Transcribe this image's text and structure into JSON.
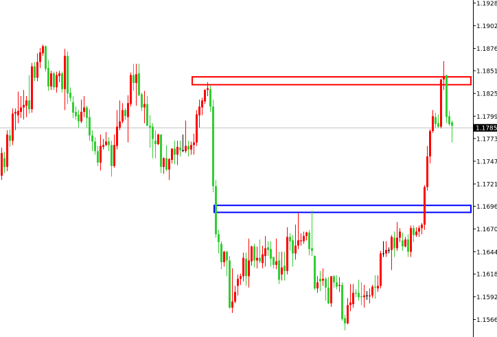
{
  "chart_data": {
    "type": "candlestick",
    "y_axis": {
      "position": "right",
      "ylim": [
        1.1552,
        1.1932
      ],
      "tick_labels": [
        "1.19285",
        "1.19025",
        "1.18765",
        "1.18510",
        "1.18250",
        "1.17990",
        "1.17735",
        "1.17475",
        "1.17215",
        "1.16960",
        "1.16700",
        "1.16440",
        "1.16185",
        "1.15925",
        "1.15665"
      ]
    },
    "grid": false,
    "current_price": {
      "value": 1.17857,
      "label": "1.17857",
      "line_color": "#c0c0c0",
      "label_bg": "#000000"
    },
    "colors": {
      "up": "#ff0000",
      "down": "#32cd32",
      "doji": "#000000",
      "axis": "#000000"
    },
    "zones": [
      {
        "name": "resistance",
        "color": "#ff0000",
        "top": 1.1844,
        "bottom": 1.1835,
        "start_index": 70
      },
      {
        "name": "support",
        "color": "#0000ff",
        "top": 1.1697,
        "bottom": 1.1689,
        "start_index": 78
      }
    ],
    "candles_format": [
      "open",
      "high",
      "low",
      "close"
    ],
    "candles": [
      [
        1.1731,
        1.1763,
        1.1726,
        1.1757
      ],
      [
        1.1751,
        1.1758,
        1.1734,
        1.1741
      ],
      [
        1.1741,
        1.1783,
        1.1736,
        1.1778
      ],
      [
        1.1777,
        1.1784,
        1.1764,
        1.1771
      ],
      [
        1.1771,
        1.1808,
        1.1766,
        1.1802
      ],
      [
        1.1802,
        1.1808,
        1.1783,
        1.1804
      ],
      [
        1.18,
        1.1827,
        1.1791,
        1.1805
      ],
      [
        1.1804,
        1.1822,
        1.1797,
        1.1809
      ],
      [
        1.1809,
        1.1829,
        1.1795,
        1.1812
      ],
      [
        1.1811,
        1.1822,
        1.1798,
        1.1817
      ],
      [
        1.1817,
        1.1846,
        1.1802,
        1.1807
      ],
      [
        1.1807,
        1.186,
        1.1803,
        1.1856
      ],
      [
        1.1856,
        1.1861,
        1.1839,
        1.1843
      ],
      [
        1.1843,
        1.1871,
        1.1839,
        1.1861
      ],
      [
        1.1861,
        1.1877,
        1.1854,
        1.1872
      ],
      [
        1.1871,
        1.1881,
        1.1868,
        1.1879
      ],
      [
        1.1879,
        1.188,
        1.185,
        1.1853
      ],
      [
        1.1854,
        1.1863,
        1.1828,
        1.1833
      ],
      [
        1.1833,
        1.1851,
        1.1829,
        1.1848
      ],
      [
        1.1848,
        1.185,
        1.1829,
        1.1832
      ],
      [
        1.1832,
        1.185,
        1.1826,
        1.1846
      ],
      [
        1.1845,
        1.1851,
        1.1838,
        1.1848
      ],
      [
        1.1848,
        1.185,
        1.1826,
        1.183
      ],
      [
        1.183,
        1.1876,
        1.1806,
        1.1868
      ],
      [
        1.1868,
        1.1873,
        1.1813,
        1.1825
      ],
      [
        1.1826,
        1.1832,
        1.1816,
        1.182
      ],
      [
        1.1815,
        1.1822,
        1.1797,
        1.1803
      ],
      [
        1.1804,
        1.181,
        1.1795,
        1.1799
      ],
      [
        1.1801,
        1.1806,
        1.1786,
        1.1793
      ],
      [
        1.1793,
        1.1818,
        1.1791,
        1.1804
      ],
      [
        1.1804,
        1.1822,
        1.1798,
        1.1809
      ],
      [
        1.1809,
        1.1811,
        1.1786,
        1.1797
      ],
      [
        1.1798,
        1.1807,
        1.1771,
        1.1777
      ],
      [
        1.1777,
        1.1783,
        1.1759,
        1.177
      ],
      [
        1.177,
        1.1775,
        1.1755,
        1.1759
      ],
      [
        1.1759,
        1.1765,
        1.1742,
        1.1746
      ],
      [
        1.1746,
        1.1778,
        1.1737,
        1.1765
      ],
      [
        1.1764,
        1.1773,
        1.1761,
        1.1766
      ],
      [
        1.1766,
        1.1781,
        1.1765,
        1.177
      ],
      [
        1.177,
        1.1775,
        1.1759,
        1.1766
      ],
      [
        1.1766,
        1.1771,
        1.173,
        1.1742
      ],
      [
        1.1742,
        1.1778,
        1.174,
        1.1766
      ],
      [
        1.1765,
        1.1806,
        1.1761,
        1.1787
      ],
      [
        1.1786,
        1.1817,
        1.1783,
        1.1793
      ],
      [
        1.1793,
        1.1814,
        1.1791,
        1.1806
      ],
      [
        1.1806,
        1.1808,
        1.1795,
        1.1799
      ],
      [
        1.1798,
        1.1823,
        1.1769,
        1.1814
      ],
      [
        1.1813,
        1.1849,
        1.181,
        1.1846
      ],
      [
        1.1846,
        1.1859,
        1.1828,
        1.1837
      ],
      [
        1.1837,
        1.1859,
        1.1811,
        1.1847
      ],
      [
        1.1848,
        1.1859,
        1.1822,
        1.1823
      ],
      [
        1.1824,
        1.1826,
        1.1805,
        1.1809
      ],
      [
        1.1809,
        1.1828,
        1.1791,
        1.1813
      ],
      [
        1.1813,
        1.1822,
        1.1788,
        1.1788
      ],
      [
        1.1788,
        1.18,
        1.1763,
        1.1786
      ],
      [
        1.1787,
        1.1791,
        1.1751,
        1.1773
      ],
      [
        1.1771,
        1.1783,
        1.1751,
        1.1767
      ],
      [
        1.1767,
        1.1779,
        1.1766,
        1.1778
      ],
      [
        1.1778,
        1.1778,
        1.1734,
        1.1741
      ],
      [
        1.1741,
        1.1752,
        1.1733,
        1.1751
      ],
      [
        1.1751,
        1.1766,
        1.1736,
        1.1738
      ],
      [
        1.1738,
        1.1751,
        1.1726,
        1.175
      ],
      [
        1.1749,
        1.1762,
        1.1745,
        1.1762
      ],
      [
        1.1762,
        1.1771,
        1.1744,
        1.1755
      ],
      [
        1.1755,
        1.1771,
        1.1743,
        1.1764
      ],
      [
        1.1763,
        1.1771,
        1.1753,
        1.176
      ],
      [
        1.176,
        1.1778,
        1.1758,
        1.176
      ],
      [
        1.1759,
        1.1794,
        1.1757,
        1.1765
      ],
      [
        1.1765,
        1.1771,
        1.1753,
        1.1761
      ],
      [
        1.1761,
        1.177,
        1.1755,
        1.1766
      ],
      [
        1.1766,
        1.1779,
        1.1755,
        1.1769
      ],
      [
        1.1769,
        1.1806,
        1.1765,
        1.1801
      ],
      [
        1.18,
        1.1818,
        1.1786,
        1.181
      ],
      [
        1.1809,
        1.182,
        1.18,
        1.1817
      ],
      [
        1.1816,
        1.183,
        1.1813,
        1.1829
      ],
      [
        1.1829,
        1.1838,
        1.1822,
        1.1831
      ],
      [
        1.183,
        1.1834,
        1.1804,
        1.181
      ],
      [
        1.181,
        1.1818,
        1.1712,
        1.1719
      ],
      [
        1.1719,
        1.1726,
        1.166,
        1.1664
      ],
      [
        1.1664,
        1.1669,
        1.1642,
        1.1655
      ],
      [
        1.1653,
        1.1656,
        1.1624,
        1.1632
      ],
      [
        1.1632,
        1.1645,
        1.1627,
        1.1644
      ],
      [
        1.1644,
        1.1645,
        1.1616,
        1.1634
      ],
      [
        1.1634,
        1.1639,
        1.1579,
        1.158
      ],
      [
        1.158,
        1.1625,
        1.1574,
        1.1587
      ],
      [
        1.1587,
        1.1605,
        1.1585,
        1.1598
      ],
      [
        1.1605,
        1.1618,
        1.1594,
        1.1613
      ],
      [
        1.1613,
        1.1619,
        1.1606,
        1.1616
      ],
      [
        1.1616,
        1.1643,
        1.161,
        1.1637
      ],
      [
        1.1636,
        1.1643,
        1.1605,
        1.1616
      ],
      [
        1.1616,
        1.1659,
        1.1603,
        1.1634
      ],
      [
        1.1633,
        1.1651,
        1.1628,
        1.165
      ],
      [
        1.165,
        1.1653,
        1.1626,
        1.1634
      ],
      [
        1.1634,
        1.165,
        1.1625,
        1.1637
      ],
      [
        1.1637,
        1.1658,
        1.1631,
        1.1633
      ],
      [
        1.1631,
        1.1651,
        1.1625,
        1.1641
      ],
      [
        1.1639,
        1.1662,
        1.1627,
        1.1648
      ],
      [
        1.1649,
        1.1656,
        1.1639,
        1.1646
      ],
      [
        1.1647,
        1.1656,
        1.1627,
        1.1636
      ],
      [
        1.1638,
        1.1638,
        1.1625,
        1.1629
      ],
      [
        1.1629,
        1.1659,
        1.1624,
        1.1633
      ],
      [
        1.1634,
        1.1644,
        1.1607,
        1.1612
      ],
      [
        1.1618,
        1.1644,
        1.1611,
        1.1626
      ],
      [
        1.1628,
        1.1644,
        1.1611,
        1.1622
      ],
      [
        1.1622,
        1.1672,
        1.1618,
        1.1661
      ],
      [
        1.1661,
        1.1665,
        1.1645,
        1.1656
      ],
      [
        1.1657,
        1.1663,
        1.1627,
        1.1642
      ],
      [
        1.1642,
        1.1675,
        1.1635,
        1.1651
      ],
      [
        1.1651,
        1.1688,
        1.1647,
        1.1657
      ],
      [
        1.1656,
        1.1665,
        1.1651,
        1.1657
      ],
      [
        1.1656,
        1.1667,
        1.1653,
        1.1662
      ],
      [
        1.1662,
        1.1667,
        1.1657,
        1.1666
      ],
      [
        1.1666,
        1.1669,
        1.164,
        1.1647
      ],
      [
        1.1648,
        1.1691,
        1.1639,
        1.1645
      ],
      [
        1.1639,
        1.164,
        1.16,
        1.1602
      ],
      [
        1.1602,
        1.1616,
        1.1597,
        1.1609
      ],
      [
        1.1613,
        1.1622,
        1.1599,
        1.161
      ],
      [
        1.1611,
        1.1625,
        1.1605,
        1.1613
      ],
      [
        1.1613,
        1.1615,
        1.1588,
        1.1603
      ],
      [
        1.1603,
        1.1615,
        1.1584,
        1.1585
      ],
      [
        1.1585,
        1.1616,
        1.1581,
        1.1616
      ],
      [
        1.1616,
        1.1617,
        1.1603,
        1.1609
      ],
      [
        1.1609,
        1.1617,
        1.1601,
        1.1604
      ],
      [
        1.1605,
        1.1615,
        1.1598,
        1.1606
      ],
      [
        1.1606,
        1.1609,
        1.1565,
        1.1567
      ],
      [
        1.1568,
        1.1572,
        1.1554,
        1.1562
      ],
      [
        1.1562,
        1.1591,
        1.1561,
        1.1583
      ],
      [
        1.1583,
        1.1607,
        1.1576,
        1.1586
      ],
      [
        1.1584,
        1.1607,
        1.158,
        1.1597
      ],
      [
        1.1597,
        1.1601,
        1.1592,
        1.1596
      ],
      [
        1.1597,
        1.1612,
        1.1588,
        1.1592
      ],
      [
        1.1593,
        1.1609,
        1.1583,
        1.1592
      ],
      [
        1.1592,
        1.1606,
        1.158,
        1.1594
      ],
      [
        1.1594,
        1.1599,
        1.1589,
        1.1594
      ],
      [
        1.1593,
        1.1602,
        1.1585,
        1.1594
      ],
      [
        1.1594,
        1.1606,
        1.1591,
        1.1604
      ],
      [
        1.1604,
        1.1617,
        1.159,
        1.1603
      ],
      [
        1.1602,
        1.1617,
        1.1598,
        1.1605
      ],
      [
        1.1605,
        1.1645,
        1.1602,
        1.1642
      ],
      [
        1.1642,
        1.1656,
        1.1638,
        1.1642
      ],
      [
        1.1642,
        1.1656,
        1.1638,
        1.1646
      ],
      [
        1.1646,
        1.1649,
        1.1642,
        1.1646
      ],
      [
        1.1646,
        1.1663,
        1.1623,
        1.1661
      ],
      [
        1.166,
        1.1667,
        1.1638,
        1.1648
      ],
      [
        1.1648,
        1.1678,
        1.1645,
        1.166
      ],
      [
        1.166,
        1.1671,
        1.1655,
        1.1667
      ],
      [
        1.1657,
        1.1666,
        1.1645,
        1.165
      ],
      [
        1.165,
        1.1661,
        1.1649,
        1.1658
      ],
      [
        1.1658,
        1.1664,
        1.1638,
        1.1644
      ],
      [
        1.1644,
        1.1674,
        1.1638,
        1.1671
      ],
      [
        1.1671,
        1.1674,
        1.1655,
        1.1663
      ],
      [
        1.1663,
        1.1672,
        1.1661,
        1.1667
      ],
      [
        1.1667,
        1.1674,
        1.1661,
        1.1671
      ],
      [
        1.1671,
        1.1677,
        1.1664,
        1.1675
      ],
      [
        1.1675,
        1.172,
        1.1669,
        1.1718
      ],
      [
        1.1718,
        1.1765,
        1.1714,
        1.1753
      ],
      [
        1.1753,
        1.1784,
        1.1745,
        1.1782
      ],
      [
        1.1782,
        1.1806,
        1.178,
        1.1799
      ],
      [
        1.1798,
        1.1803,
        1.1786,
        1.179
      ],
      [
        1.1791,
        1.1801,
        1.1786,
        1.1787
      ],
      [
        1.1787,
        1.1842,
        1.1785,
        1.1841
      ],
      [
        1.1841,
        1.1862,
        1.1829,
        1.1845
      ],
      [
        1.1846,
        1.1846,
        1.1791,
        1.1798
      ],
      [
        1.1799,
        1.1805,
        1.1788,
        1.179
      ],
      [
        1.1792,
        1.1794,
        1.1769,
        1.1788
      ]
    ]
  }
}
